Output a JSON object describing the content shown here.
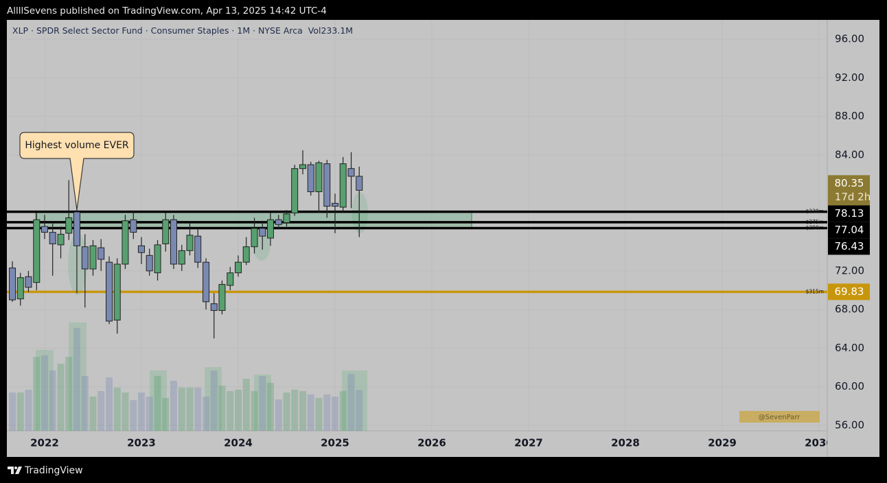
{
  "published_line": "AllllSevens published on TradingView.com, Apr 13, 2025 14:42 UTC-4",
  "footer": {
    "brand": "TradingView"
  },
  "chart_data": {
    "type": "candlestick",
    "title": "XLP · SPDR Select Sector Fund · Consumer Staples · 1M · NYSE Arca",
    "volume_label": "Vol233.1M",
    "up_color": "#58a070",
    "down_color": "#7a89b2",
    "x": [
      2021.667,
      2021.75,
      2021.833,
      2021.917,
      2022,
      2022.083,
      2022.167,
      2022.25,
      2022.333,
      2022.417,
      2022.5,
      2022.583,
      2022.667,
      2022.75,
      2022.833,
      2022.917,
      2023,
      2023.083,
      2023.167,
      2023.25,
      2023.333,
      2023.417,
      2023.5,
      2023.583,
      2023.667,
      2023.75,
      2023.833,
      2023.917,
      2024,
      2024.083,
      2024.167,
      2024.25,
      2024.333,
      2024.417,
      2024.5,
      2024.583,
      2024.667,
      2024.75,
      2024.833,
      2024.917,
      2025,
      2025.083,
      2025.167,
      2025.25
    ],
    "open": [
      72.3,
      69.1,
      71.4,
      70.8,
      76.6,
      76.0,
      74.7,
      75.9,
      78.1,
      74.5,
      72.2,
      74.4,
      72.9,
      66.9,
      72.7,
      77.3,
      74.6,
      73.6,
      71.8,
      74.8,
      77.3,
      72.7,
      74.1,
      75.6,
      72.9,
      68.6,
      67.9,
      70.5,
      71.8,
      72.9,
      74.5,
      76.4,
      75.4,
      77.3,
      77.0,
      78.0,
      82.6,
      83.0,
      80.2,
      83.1,
      79.0,
      78.6,
      82.6,
      81.8
    ],
    "high": [
      73.0,
      71.8,
      72.0,
      78.0,
      77.8,
      76.9,
      76.6,
      81.4,
      78.8,
      75.8,
      75.2,
      75.3,
      73.5,
      73.3,
      77.8,
      78.2,
      75.5,
      74.3,
      75.2,
      78.0,
      77.8,
      74.7,
      77.0,
      76.3,
      73.3,
      69.7,
      71.0,
      72.4,
      73.6,
      75.5,
      77.5,
      77.2,
      78.0,
      77.8,
      78.3,
      83.0,
      84.5,
      83.3,
      83.4,
      83.5,
      80.0,
      83.8,
      84.3,
      82.8
    ],
    "low": [
      68.8,
      68.4,
      69.8,
      70.0,
      75.3,
      71.5,
      73.3,
      75.2,
      69.7,
      68.2,
      71.5,
      72.0,
      66.5,
      65.5,
      72.2,
      75.3,
      72.7,
      71.5,
      71.0,
      74.0,
      72.2,
      72.0,
      73.6,
      72.3,
      68.0,
      65.0,
      67.5,
      70.0,
      71.4,
      72.6,
      73.8,
      74.2,
      74.6,
      76.3,
      76.6,
      77.7,
      82.0,
      79.8,
      78.0,
      77.5,
      75.9,
      78.0,
      78.5,
      75.5
    ],
    "close": [
      69.0,
      71.3,
      70.3,
      77.3,
      76.0,
      74.8,
      75.8,
      77.5,
      74.6,
      72.2,
      74.6,
      73.2,
      66.8,
      72.7,
      77.2,
      76.0,
      73.9,
      72.0,
      74.7,
      77.3,
      72.7,
      74.1,
      75.7,
      72.9,
      68.8,
      67.9,
      70.6,
      71.8,
      72.9,
      74.5,
      76.4,
      75.6,
      77.3,
      76.8,
      77.9,
      82.6,
      83.0,
      80.2,
      83.2,
      78.7,
      78.7,
      83.1,
      81.8,
      80.35
    ],
    "volume": [
      218,
      218,
      234,
      421,
      429,
      343,
      382,
      421,
      585,
      312,
      195,
      226,
      304,
      246,
      218,
      175,
      218,
      195,
      312,
      187,
      285,
      246,
      246,
      246,
      195,
      343,
      257,
      226,
      234,
      296,
      226,
      312,
      273,
      179,
      218,
      234,
      226,
      207,
      187,
      207,
      195,
      226,
      324,
      233.1
    ],
    "countdown": "17d 2h",
    "levels": [
      {
        "price": 78.13,
        "tag": "$230m",
        "color": "#000000"
      },
      {
        "price": 77.04,
        "tag": "$275m",
        "color": "#000000"
      },
      {
        "price": 76.43,
        "tag": "$290m",
        "color": "#000000"
      },
      {
        "price": 69.83,
        "tag": "$315m",
        "color": "#c8960c"
      }
    ],
    "annotation": "Highest volume EVER",
    "watermark": "@SevenParr",
    "xlim": [
      2021.61,
      2030.085
    ],
    "xticks": [
      2022,
      2023,
      2024,
      2025,
      2026,
      2027,
      2028,
      2029,
      2030
    ],
    "ylim": [
      55.43,
      98.0
    ],
    "yticks": [
      {
        "value": 56,
        "label": "56.00"
      },
      {
        "value": 60,
        "label": "60.00"
      },
      {
        "value": 64,
        "label": "64.00"
      },
      {
        "value": 68,
        "label": "68.00"
      },
      {
        "value": 72,
        "label": "72.00"
      },
      {
        "value": 84,
        "label": "84.00"
      },
      {
        "value": 88,
        "label": "88.00"
      },
      {
        "value": 92,
        "label": "92.00"
      },
      {
        "value": 96,
        "label": "96.00"
      }
    ],
    "grid": true
  }
}
